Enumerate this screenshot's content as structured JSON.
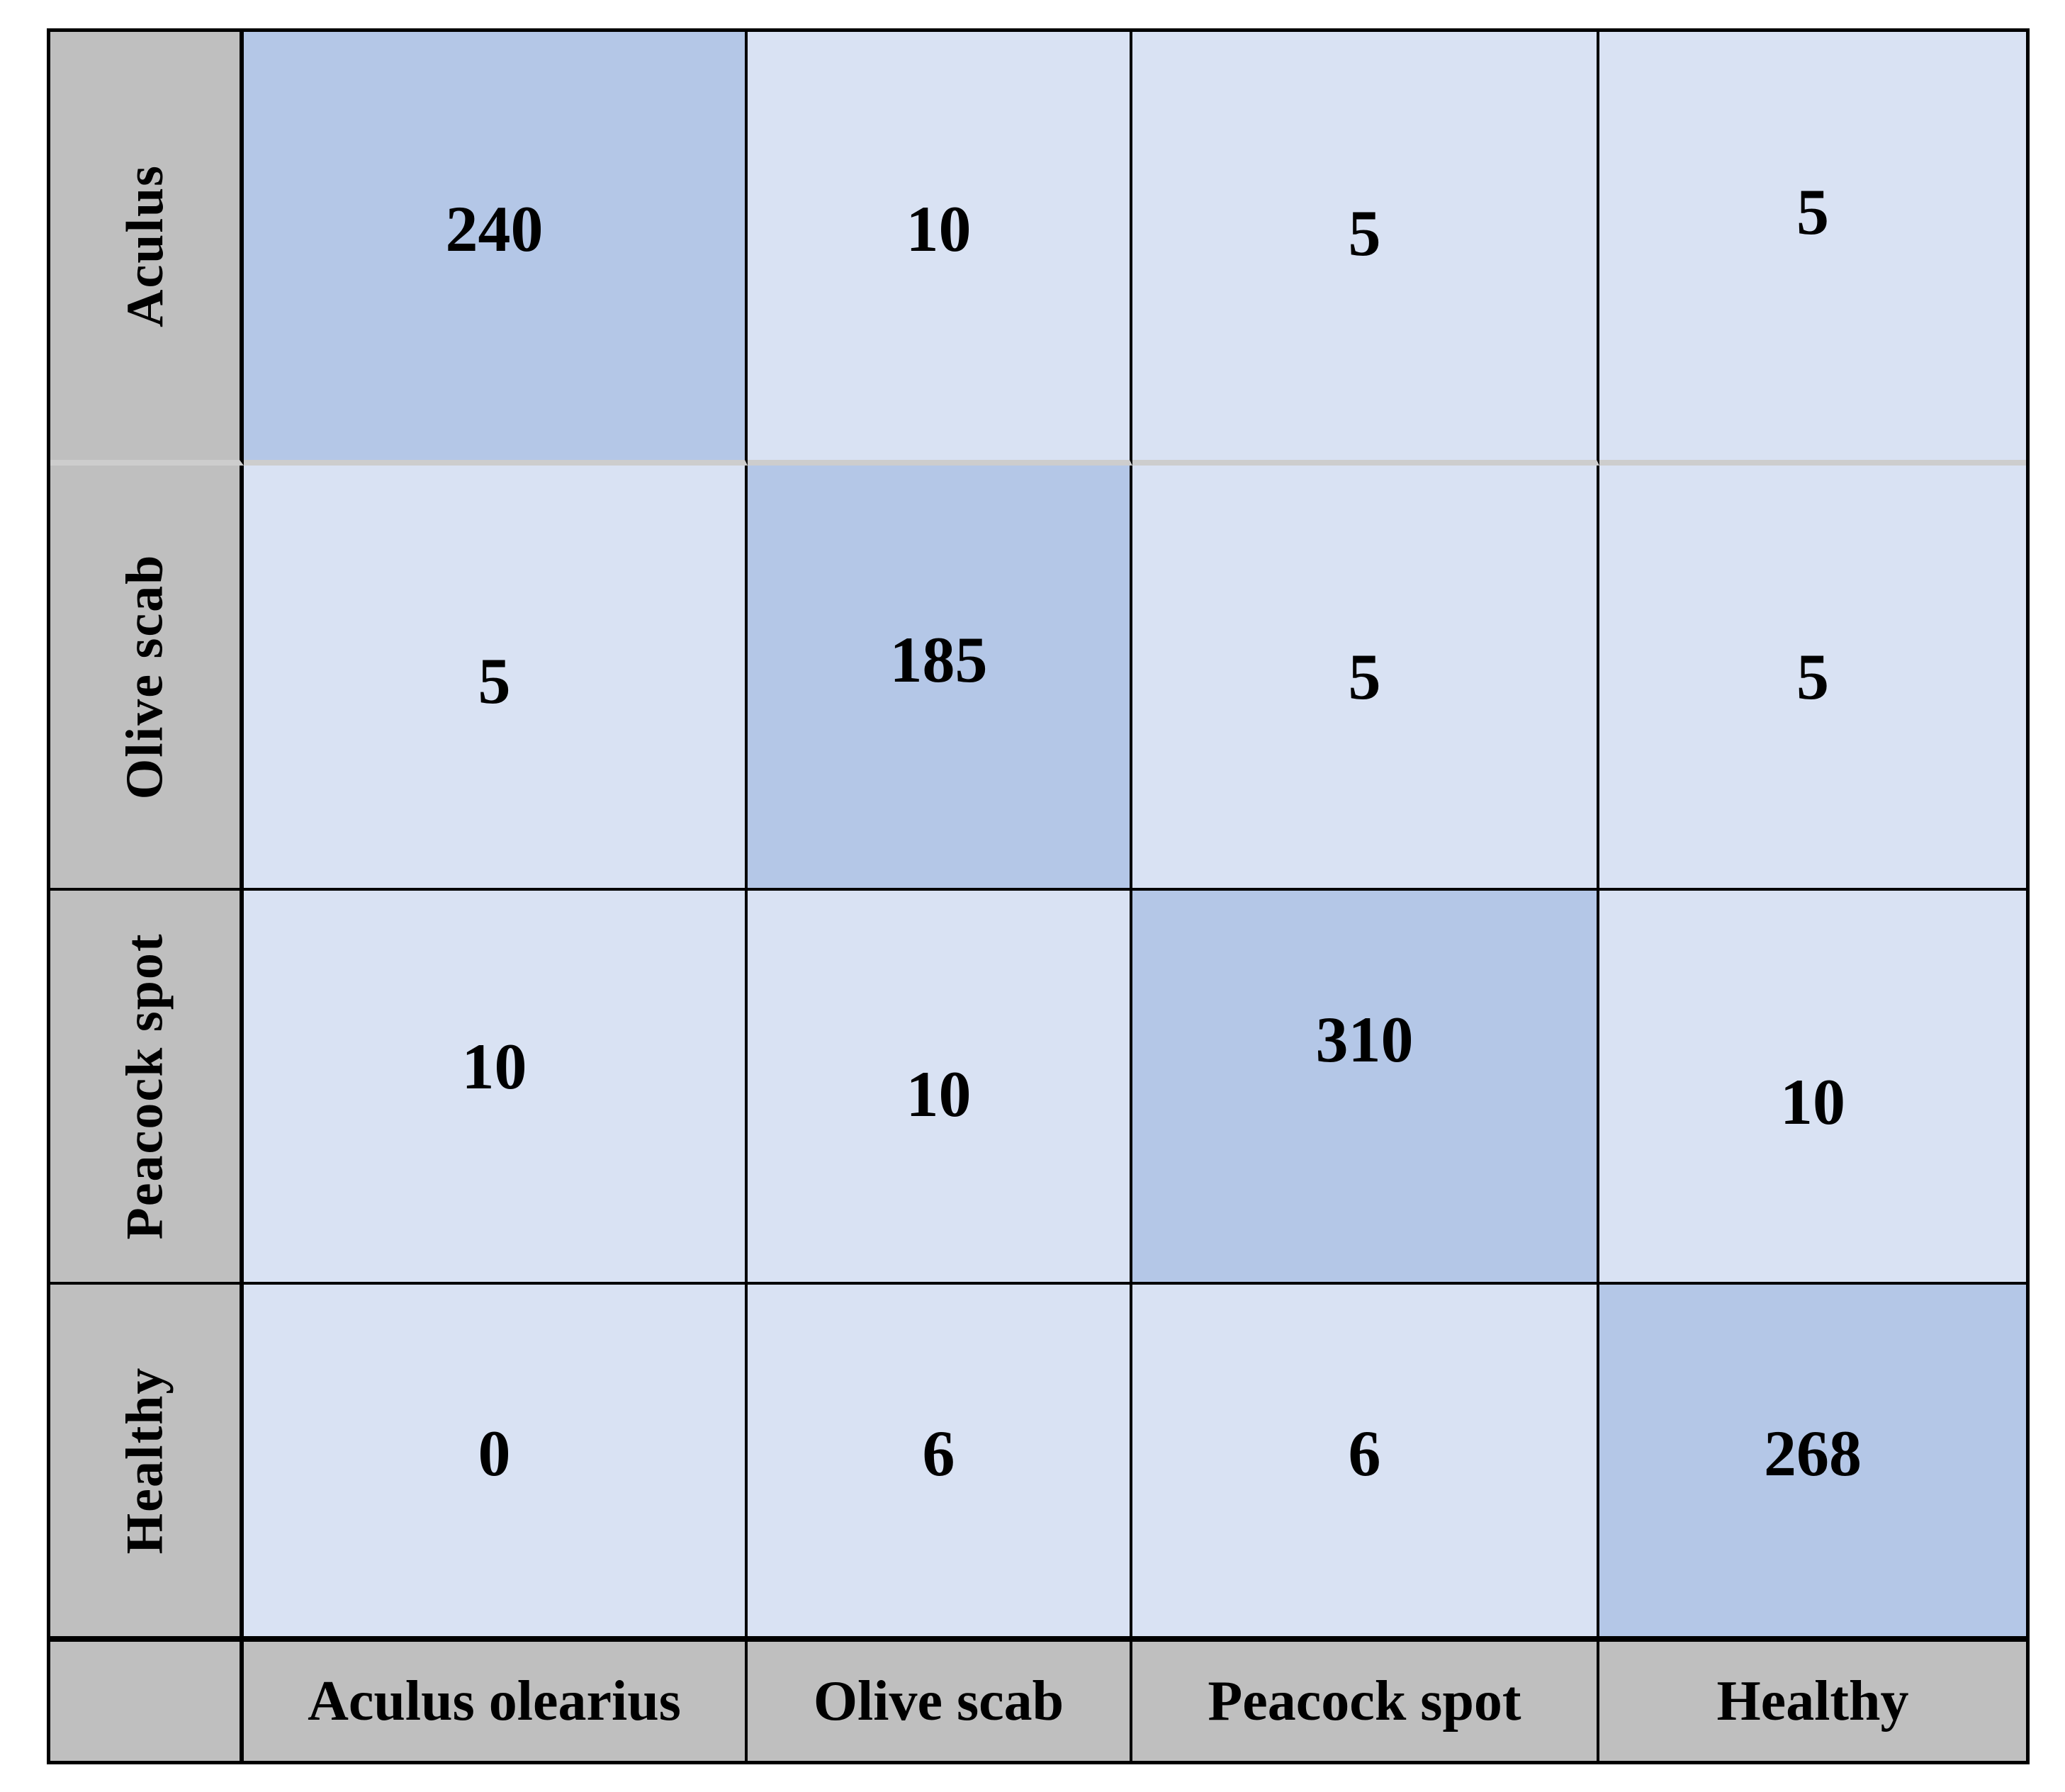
{
  "chart_data": {
    "type": "heatmap",
    "title": "",
    "description": "Confusion matrix of olive leaf disease classification",
    "rows": [
      "Aculus",
      "Olive scab",
      "Peacock spot",
      "Healthy"
    ],
    "columns": [
      "Aculus olearius",
      "Olive scab",
      "Peacock spot",
      "Healthy"
    ],
    "values": [
      [
        240,
        10,
        5,
        5
      ],
      [
        5,
        185,
        5,
        5
      ],
      [
        10,
        10,
        310,
        10
      ],
      [
        0,
        6,
        6,
        268
      ]
    ],
    "diagonal_values": [
      240,
      185,
      310,
      268
    ],
    "layout": {
      "row_labels_position": "left-rotated",
      "column_labels_position": "bottom",
      "grid": "on"
    },
    "colors": {
      "diagonal_cell": "#b4c7e7",
      "off_diagonal_cell": "#d9e2f3",
      "header_background": "#bfbfbf",
      "grid_line": "#000000",
      "row1_divider_line": "#cdcdcd",
      "text": "#000000",
      "page_background": "#ffffff"
    }
  }
}
